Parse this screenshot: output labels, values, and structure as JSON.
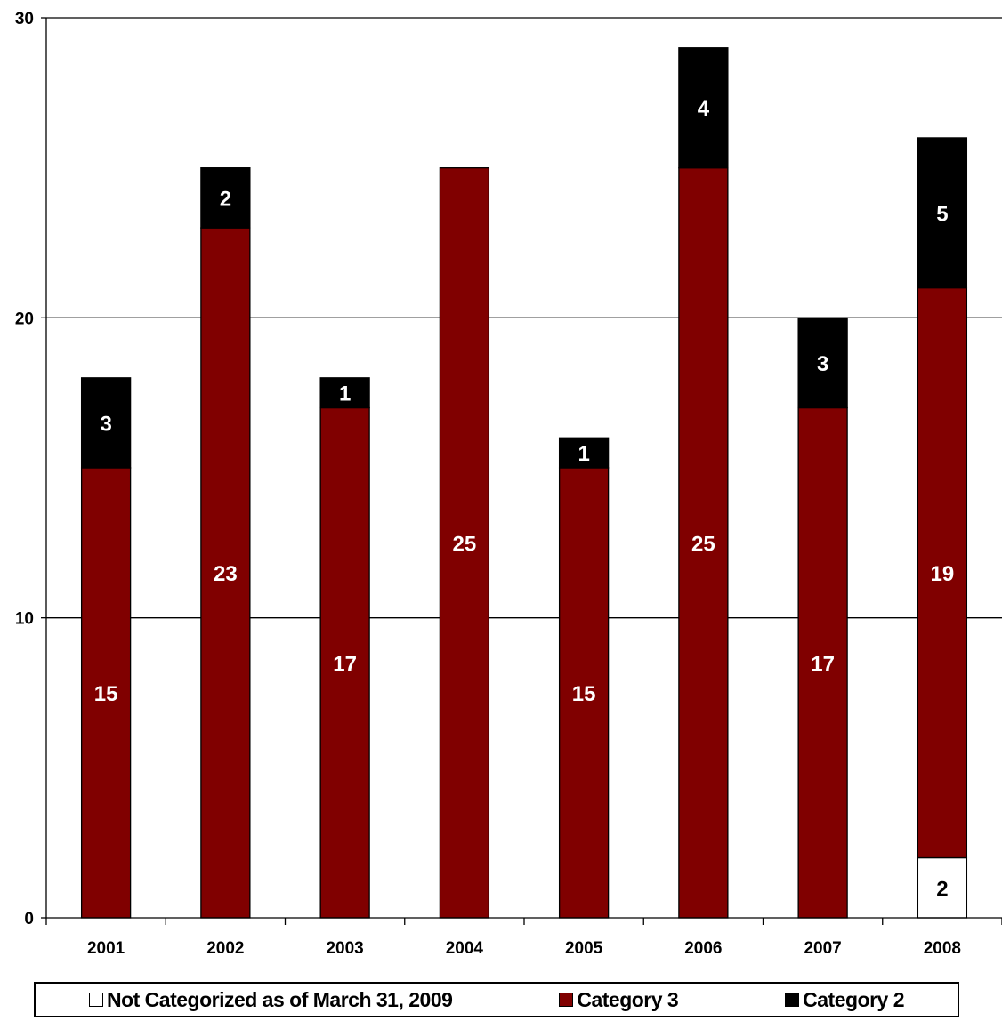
{
  "chart_data": {
    "type": "bar",
    "stacked": true,
    "categories": [
      "2001",
      "2002",
      "2003",
      "2004",
      "2005",
      "2006",
      "2007",
      "2008"
    ],
    "series": [
      {
        "name": "Not Categorized as of March 31, 2009",
        "color": "#ffffff",
        "values": [
          0,
          0,
          0,
          0,
          0,
          0,
          0,
          2
        ]
      },
      {
        "name": "Category 3",
        "color": "#800000",
        "values": [
          15,
          23,
          17,
          25,
          15,
          25,
          17,
          19
        ]
      },
      {
        "name": "Category 2",
        "color": "#000000",
        "values": [
          3,
          2,
          1,
          0,
          1,
          4,
          3,
          5
        ]
      }
    ],
    "yticks": [
      "0",
      "10",
      "20",
      "30"
    ],
    "ylim": [
      0,
      30
    ],
    "grid": true,
    "legend_position": "bottom"
  }
}
